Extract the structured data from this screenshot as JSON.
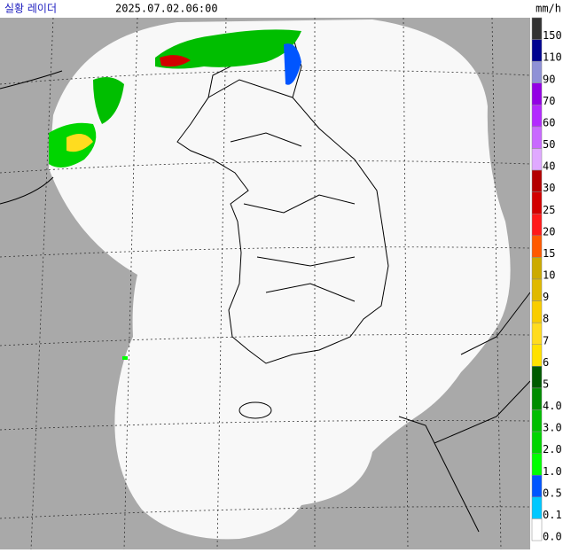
{
  "header": {
    "title": "실황 레이더",
    "time": "2025.07.02.06:00",
    "unit": "mm/h"
  },
  "legend": [
    {
      "label": "150",
      "color": "#333333"
    },
    {
      "label": "110",
      "color": "#000390"
    },
    {
      "label": "90",
      "color": "#8f91d6"
    },
    {
      "label": "70",
      "color": "#9300e4"
    },
    {
      "label": "60",
      "color": "#b329ff"
    },
    {
      "label": "50",
      "color": "#c969ff"
    },
    {
      "label": "40",
      "color": "#e0a9ff"
    },
    {
      "label": "30",
      "color": "#b40000"
    },
    {
      "label": "25",
      "color": "#d20000"
    },
    {
      "label": "20",
      "color": "#ff1a1a"
    },
    {
      "label": "15",
      "color": "#ff5a00"
    },
    {
      "label": "10",
      "color": "#ccaa00"
    },
    {
      "label": "9",
      "color": "#e0b900"
    },
    {
      "label": "8",
      "color": "#f9cd00"
    },
    {
      "label": "7",
      "color": "#ffdc1f"
    },
    {
      "label": "6",
      "color": "#ffe100"
    },
    {
      "label": "5",
      "color": "#005a00"
    },
    {
      "label": "4.0",
      "color": "#008c00"
    },
    {
      "label": "3.0",
      "color": "#00be00"
    },
    {
      "label": "2.0",
      "color": "#00d500"
    },
    {
      "label": "1.0",
      "color": "#00ff00"
    },
    {
      "label": "0.5",
      "color": "#0055ff"
    },
    {
      "label": "0.1",
      "color": "#00c8ff"
    },
    {
      "label": "0.0",
      "color": "#ffffff"
    }
  ]
}
